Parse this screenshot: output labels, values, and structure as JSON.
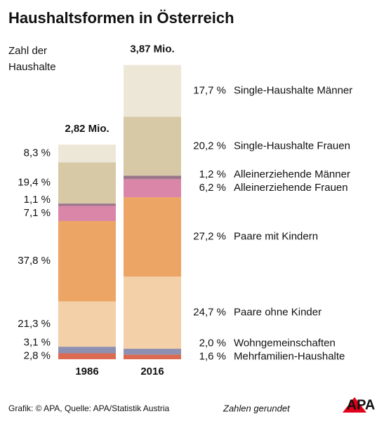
{
  "chart_data": {
    "type": "stacked_bar",
    "title": "Haushaltsformen in Österreich",
    "ylabel": [
      "Zahl der",
      "Haushalte"
    ],
    "categories": [
      "1986",
      "2016"
    ],
    "totals": {
      "values": [
        2.82,
        3.87
      ],
      "value_labels": [
        "2,82 Mio.",
        "3,87 Mio."
      ]
    },
    "series": [
      {
        "name": "Mehrfamilien-Haushalte",
        "color": "#dc6a50",
        "values": [
          2.8,
          1.6
        ],
        "value_labels": [
          "2,8 %",
          "1,6 %"
        ]
      },
      {
        "name": "Wohngemeinschaften",
        "color": "#8e90b1",
        "values": [
          3.1,
          2.0
        ],
        "value_labels": [
          "3,1 %",
          "2,0 %"
        ]
      },
      {
        "name": "Paare ohne Kinder",
        "color": "#f4d0a8",
        "values": [
          21.3,
          24.7
        ],
        "value_labels": [
          "21,3 %",
          "24,7 %"
        ]
      },
      {
        "name": "Paare mit Kindern",
        "color": "#eca565",
        "values": [
          37.8,
          27.2
        ],
        "value_labels": [
          "37,8 %",
          "27,2 %"
        ]
      },
      {
        "name": "Alleinerziehende Frauen",
        "color": "#d986a9",
        "values": [
          7.1,
          6.2
        ],
        "value_labels": [
          "7,1 %",
          "6,2 %"
        ]
      },
      {
        "name": "Alleinerziehende Männer",
        "color": "#9b7589",
        "values": [
          1.1,
          1.2
        ],
        "value_labels": [
          "1,1 %",
          "1,2 %"
        ]
      },
      {
        "name": "Single-Haushalte Frauen",
        "color": "#d7c9a6",
        "values": [
          19.4,
          20.2
        ],
        "value_labels": [
          "19,4 %",
          "20,2 %"
        ]
      },
      {
        "name": "Single-Haushalte Männer",
        "color": "#ede7d7",
        "values": [
          8.3,
          17.7
        ],
        "value_labels": [
          "8,3 %",
          "17,7 %"
        ]
      }
    ],
    "source": "Grafik: © APA, Quelle: APA/Statistik Austria",
    "note": "Zahlen gerundet",
    "logo": "APA"
  }
}
